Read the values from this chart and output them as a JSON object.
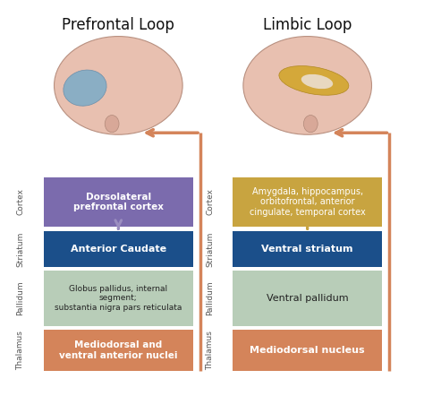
{
  "title_left": "Prefrontal Loop",
  "title_right": "Limbic Loop",
  "background_color": "#ffffff",
  "left_boxes": [
    {
      "label": "Dorsolateral\nprefrontal cortex",
      "color": "#7b6bad",
      "text_color": "white",
      "fontsize": 7.5,
      "bold": true
    },
    {
      "label": "Anterior Caudate",
      "color": "#1b4f8a",
      "text_color": "white",
      "fontsize": 8,
      "bold": true
    },
    {
      "label": "Globus pallidus, internal\nsegment;\nsubstantia nigra pars reticulata",
      "color": "#b8cdb8",
      "text_color": "#222222",
      "fontsize": 6.5,
      "bold": false
    },
    {
      "label": "Mediodorsal and\nventral anterior nuclei",
      "color": "#d4845a",
      "text_color": "white",
      "fontsize": 7.5,
      "bold": true
    }
  ],
  "right_boxes": [
    {
      "label": "Amygdala, hippocampus,\norbitofrontal, anterior\ncingulate, temporal cortex",
      "color": "#c8a440",
      "text_color": "white",
      "fontsize": 7.0,
      "bold": false
    },
    {
      "label": "Ventral striatum",
      "color": "#1b4f8a",
      "text_color": "white",
      "fontsize": 8,
      "bold": true
    },
    {
      "label": "Ventral pallidum",
      "color": "#b8cdb8",
      "text_color": "#222222",
      "fontsize": 8,
      "bold": false
    },
    {
      "label": "Mediodorsal nucleus",
      "color": "#d4845a",
      "text_color": "white",
      "fontsize": 8,
      "bold": true
    }
  ],
  "row_labels": [
    "Cortex",
    "Striatum",
    "Pallidum",
    "Thalamus"
  ],
  "row_label_color": "#555555",
  "arrow_colors_left": [
    "#9b8ec0",
    "#2e6fad",
    "#aac8aa"
  ],
  "arrow_colors_right": [
    "#c8a440",
    "#2e6fad",
    "#aac8aa"
  ],
  "loop_arrow_color": "#d4845a",
  "title_fontsize": 12
}
